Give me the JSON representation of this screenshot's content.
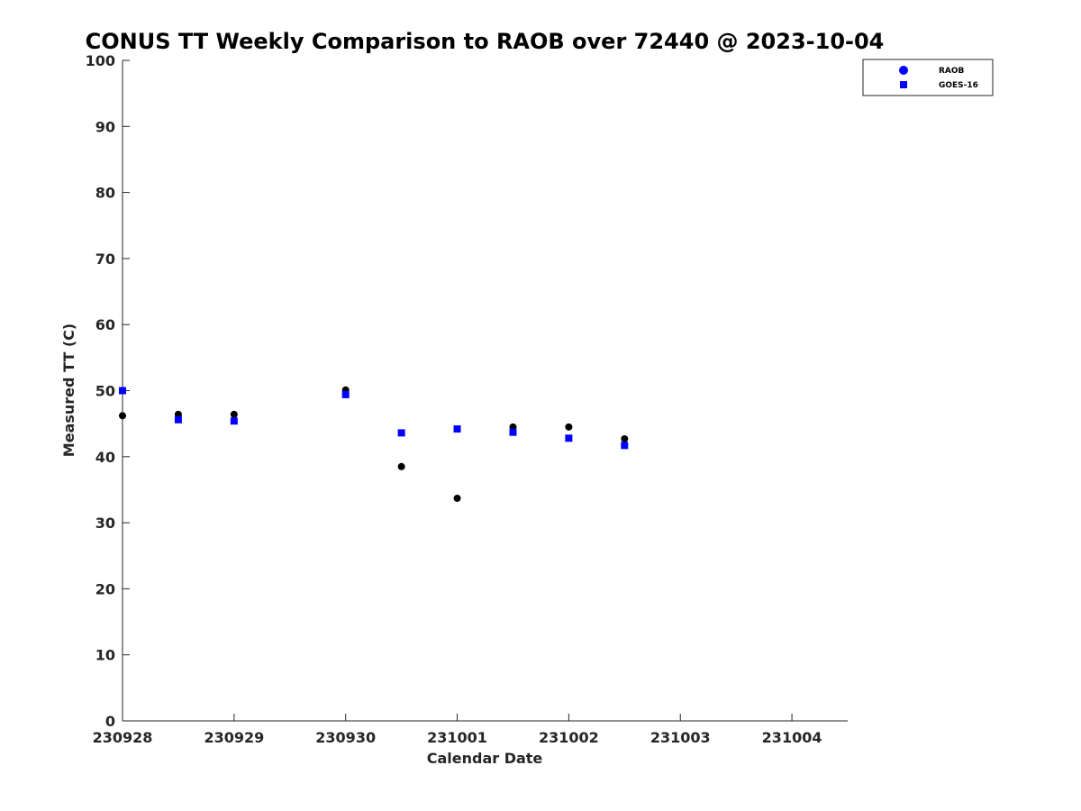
{
  "chart_data": {
    "type": "scatter",
    "title": "CONUS TT Weekly Comparison to RAOB over 72440 @ 2023-10-04",
    "xlabel": "Calendar Date",
    "ylabel": "Measured TT (C)",
    "xlim": [
      "2023-09-28",
      "2023-10-04 12:00"
    ],
    "ylim": [
      0,
      100
    ],
    "x_ticks": [
      {
        "value": "2023-09-28",
        "label": "230928"
      },
      {
        "value": "2023-09-29",
        "label": "230929"
      },
      {
        "value": "2023-09-30",
        "label": "230930"
      },
      {
        "value": "2023-10-01",
        "label": "231001"
      },
      {
        "value": "2023-10-02",
        "label": "231002"
      },
      {
        "value": "2023-10-03",
        "label": "231003"
      },
      {
        "value": "2023-10-04",
        "label": "231004"
      }
    ],
    "y_ticks": [
      0,
      10,
      20,
      30,
      40,
      50,
      60,
      70,
      80,
      90,
      100
    ],
    "grid": false,
    "legend_position": "top-right",
    "series": [
      {
        "name": "RAOB",
        "marker": "circle",
        "color": "#000000",
        "legend_color": "#0000ff",
        "points": [
          {
            "x": "2023-09-28 00:00",
            "y": 46.2
          },
          {
            "x": "2023-09-28 12:00",
            "y": 46.4
          },
          {
            "x": "2023-09-29 00:00",
            "y": 46.4
          },
          {
            "x": "2023-09-30 00:00",
            "y": 50.1
          },
          {
            "x": "2023-09-30 12:00",
            "y": 38.5
          },
          {
            "x": "2023-10-01 00:00",
            "y": 33.7
          },
          {
            "x": "2023-10-01 12:00",
            "y": 44.5
          },
          {
            "x": "2023-10-02 00:00",
            "y": 44.5
          },
          {
            "x": "2023-10-02 12:00",
            "y": 42.7
          }
        ]
      },
      {
        "name": "GOES-16",
        "marker": "square",
        "color": "#0000ff",
        "legend_color": "#0000ff",
        "points": [
          {
            "x": "2023-09-28 00:00",
            "y": 50.0
          },
          {
            "x": "2023-09-28 12:00",
            "y": 45.6
          },
          {
            "x": "2023-09-29 00:00",
            "y": 45.4
          },
          {
            "x": "2023-09-30 00:00",
            "y": 49.4
          },
          {
            "x": "2023-09-30 12:00",
            "y": 43.6
          },
          {
            "x": "2023-10-01 00:00",
            "y": 44.2
          },
          {
            "x": "2023-10-01 12:00",
            "y": 43.7
          },
          {
            "x": "2023-10-02 00:00",
            "y": 42.8
          },
          {
            "x": "2023-10-02 12:00",
            "y": 41.7
          }
        ]
      }
    ]
  }
}
